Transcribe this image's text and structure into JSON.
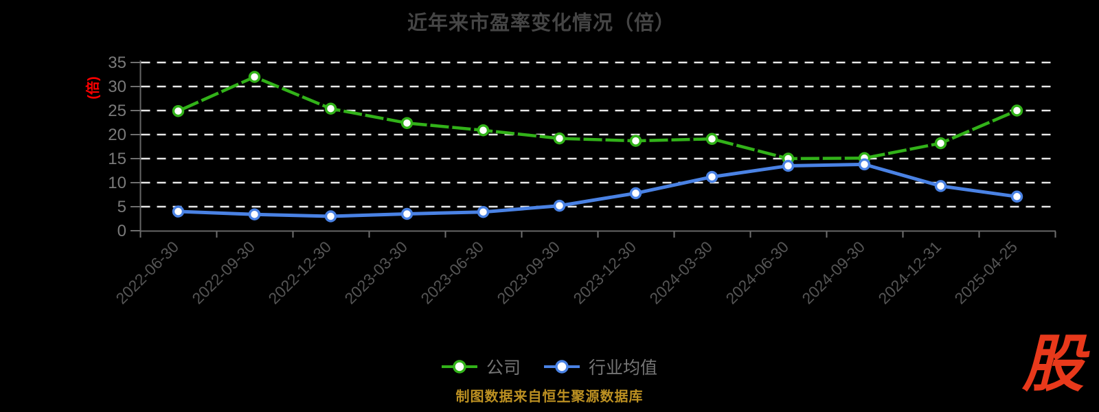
{
  "title": "近年来市盈率变化情况（倍）",
  "y_axis_unit": "(倍)",
  "colors": {
    "background": "#000000",
    "company_line": "#32b219",
    "industry_line": "#4a82e4",
    "unit_label": "#ff0000",
    "source_note": "#bd9122",
    "logo": "#e8391b"
  },
  "legend": {
    "items": [
      {
        "label": "公司",
        "color": "#32b219"
      },
      {
        "label": "行业均值",
        "color": "#4a82e4"
      }
    ]
  },
  "footer": {
    "source_note": "制图数据来自恒生聚源数据库"
  },
  "logo": {
    "text": "股"
  },
  "chart_data": {
    "type": "line",
    "title": "近年来市盈率变化情况（倍）",
    "ylabel": "(倍)",
    "xlabel": "",
    "categories": [
      "2022-06-30",
      "2022-09-30",
      "2022-12-30",
      "2023-03-30",
      "2023-06-30",
      "2023-09-30",
      "2023-12-30",
      "2024-03-30",
      "2024-06-30",
      "2024-09-30",
      "2024-12-31",
      "2025-04-25"
    ],
    "series": [
      {
        "name": "公司",
        "color": "#32b219",
        "values": [
          24.9,
          32.0,
          25.4,
          22.4,
          20.9,
          19.2,
          18.7,
          19.1,
          15.0,
          15.1,
          18.2,
          25.0
        ]
      },
      {
        "name": "行业均值",
        "color": "#4a82e4",
        "values": [
          4.0,
          3.4,
          3.0,
          3.5,
          3.9,
          5.2,
          7.8,
          11.2,
          13.5,
          13.8,
          9.3,
          7.1
        ]
      }
    ],
    "ylim": [
      0,
      35
    ],
    "y_ticks": [
      0,
      5,
      10,
      15,
      20,
      25,
      30,
      35
    ],
    "grid": true,
    "grid_style": "dashed-white",
    "legend_position": "bottom"
  }
}
